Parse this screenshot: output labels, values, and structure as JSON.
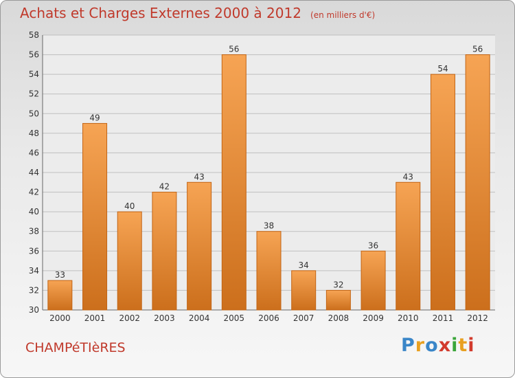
{
  "title": "Achats et Charges Externes 2000 à 2012",
  "unit": "(en milliers d'€)",
  "commune": "CHAMPéTIèRES",
  "logo": {
    "letters": [
      "P",
      "r",
      "o",
      "x",
      "i",
      "t",
      "i"
    ]
  },
  "colors": {
    "title": "#c0392b",
    "bar_light": "#f6a454",
    "bar_dark": "#cc6f1c",
    "grid": "#bfbfbf"
  },
  "chart_data": {
    "type": "bar",
    "title": "Achats et Charges Externes 2000 à 2012",
    "subtitle": "(en milliers d'€)",
    "categories": [
      "2000",
      "2001",
      "2002",
      "2003",
      "2004",
      "2005",
      "2006",
      "2007",
      "2008",
      "2009",
      "2010",
      "2011",
      "2012"
    ],
    "values": [
      33,
      49,
      40,
      42,
      43,
      56,
      38,
      34,
      32,
      36,
      43,
      54,
      56
    ],
    "ylim": [
      30,
      58
    ],
    "yticks": [
      30,
      32,
      34,
      36,
      38,
      40,
      42,
      44,
      46,
      48,
      50,
      52,
      54,
      56,
      58
    ],
    "grid": true,
    "data_labels": true
  }
}
